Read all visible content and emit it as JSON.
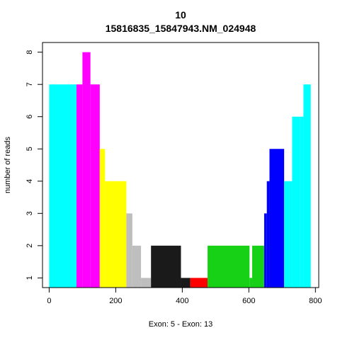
{
  "chart_data": {
    "type": "bar",
    "title": "10",
    "subtitle": "15816835_15847943.NM_024948",
    "xlabel": "Exon: 5 - Exon: 13",
    "ylabel": "number of reads",
    "xlim": [
      -20,
      810
    ],
    "ylim": [
      0.7,
      8.3
    ],
    "xticks": [
      0,
      200,
      400,
      600,
      800
    ],
    "yticks": [
      1,
      2,
      3,
      4,
      5,
      6,
      7,
      8
    ],
    "grid": false,
    "series": [
      {
        "color": "#00FFFF",
        "bars": [
          [
            0,
            82,
            7
          ]
        ]
      },
      {
        "color": "#FF00FF",
        "bars": [
          [
            82,
            100,
            7
          ],
          [
            100,
            124,
            8
          ],
          [
            124,
            152,
            7
          ]
        ]
      },
      {
        "color": "#FFFF00",
        "bars": [
          [
            152,
            168,
            5
          ],
          [
            168,
            232,
            4
          ]
        ]
      },
      {
        "color": "#BEBEBE",
        "bars": [
          [
            232,
            250,
            3
          ],
          [
            250,
            276,
            2
          ],
          [
            276,
            306,
            1
          ]
        ]
      },
      {
        "color": "#1A1A1A",
        "bars": [
          [
            306,
            396,
            2
          ],
          [
            396,
            424,
            1
          ]
        ]
      },
      {
        "color": "#FF0000",
        "bars": [
          [
            424,
            476,
            1
          ]
        ]
      },
      {
        "color": "#16D116",
        "bars": [
          [
            476,
            602,
            2
          ],
          [
            602,
            610,
            1
          ],
          [
            610,
            646,
            2
          ]
        ]
      },
      {
        "color": "#0000FF",
        "bars": [
          [
            646,
            654,
            3
          ],
          [
            654,
            662,
            4
          ],
          [
            662,
            706,
            5
          ]
        ]
      },
      {
        "color": "#00FFFF",
        "bars": [
          [
            706,
            730,
            4
          ],
          [
            730,
            754,
            6
          ],
          [
            754,
            764,
            6
          ],
          [
            764,
            786,
            7
          ]
        ]
      }
    ]
  }
}
